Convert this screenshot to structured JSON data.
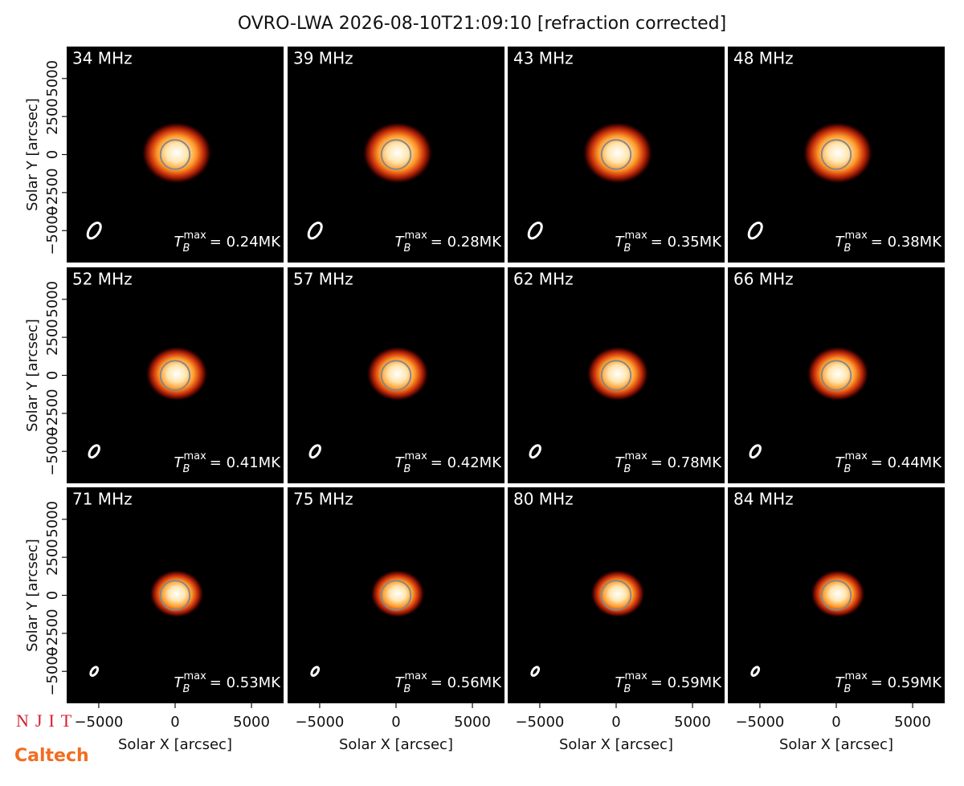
{
  "chart_data": {
    "type": "image-grid",
    "title": "OVRO-LWA 2026-08-10T21:09:10 [refraction corrected]",
    "xlabel": "Solar X [arcsec]",
    "ylabel": "Solar Y [arcsec]",
    "xlim": [
      -7100,
      7100
    ],
    "ylim": [
      -7100,
      7100
    ],
    "xticks": [
      {
        "value": -5000,
        "label": "−5000"
      },
      0,
      5000
    ],
    "yticks": [
      {
        "value": -5000,
        "label": "−5000"
      },
      {
        "value": -2500,
        "label": "−2500"
      },
      0,
      2500,
      5000
    ],
    "tmax_symbol": {
      "base": "T",
      "sub": "B",
      "sup": "max"
    },
    "panels": [
      {
        "label": "34 MHz",
        "tmax_label": "= 0.24MK"
      },
      {
        "label": "39 MHz",
        "tmax_label": "= 0.28MK"
      },
      {
        "label": "43 MHz",
        "tmax_label": "= 0.35MK"
      },
      {
        "label": "48 MHz",
        "tmax_label": "= 0.38MK"
      },
      {
        "label": "52 MHz",
        "tmax_label": "= 0.41MK"
      },
      {
        "label": "57 MHz",
        "tmax_label": "= 0.42MK"
      },
      {
        "label": "62 MHz",
        "tmax_label": "= 0.78MK"
      },
      {
        "label": "66 MHz",
        "tmax_label": "= 0.44MK"
      },
      {
        "label": "71 MHz",
        "tmax_label": "= 0.53MK"
      },
      {
        "label": "75 MHz",
        "tmax_label": "= 0.56MK"
      },
      {
        "label": "80 MHz",
        "tmax_label": "= 0.59MK"
      },
      {
        "label": "84 MHz",
        "tmax_label": "= 0.59MK"
      }
    ],
    "logos": [
      "NJIT",
      "Caltech"
    ]
  }
}
